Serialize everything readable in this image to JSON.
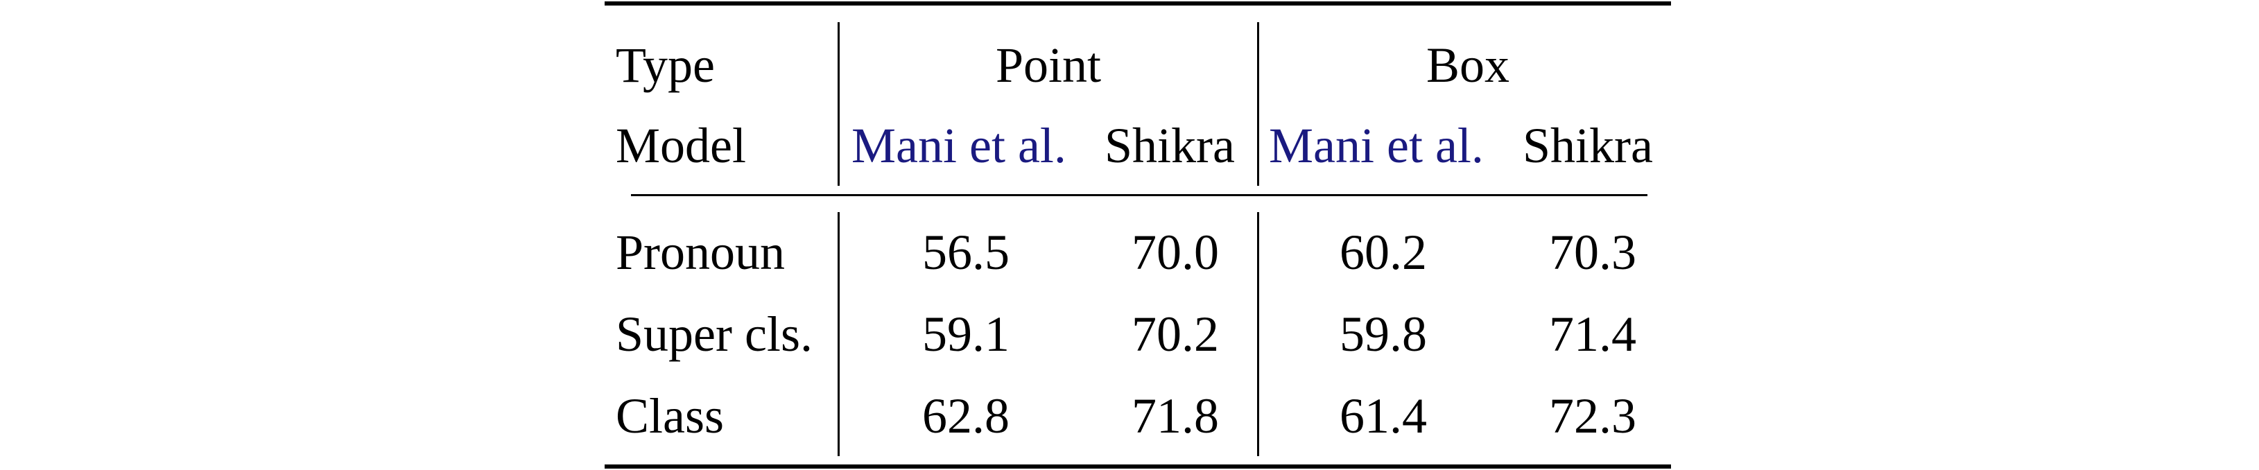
{
  "table": {
    "header": {
      "row1": {
        "label": "Type",
        "groups": [
          "Point",
          "Box"
        ]
      },
      "row2": {
        "label": "Model",
        "models": [
          "Mani et al.",
          "Shikra",
          "Mani et al.",
          "Shikra"
        ]
      }
    },
    "rows": [
      {
        "label": "Pronoun",
        "values": [
          "56.5",
          "70.0",
          "60.2",
          "70.3"
        ]
      },
      {
        "label": "Super cls.",
        "values": [
          "59.1",
          "70.2",
          "59.8",
          "71.4"
        ]
      },
      {
        "label": "Class",
        "values": [
          "62.8",
          "71.8",
          "61.4",
          "72.3"
        ]
      }
    ],
    "colors": {
      "citation": "#1a1a80",
      "text": "#000000",
      "rule": "#000000"
    }
  }
}
